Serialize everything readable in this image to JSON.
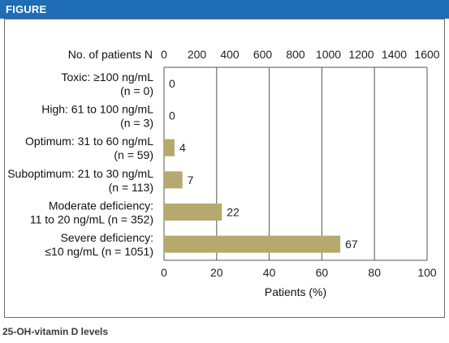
{
  "header": {
    "label": "FIGURE"
  },
  "caption": "25-OH-vitamin D levels",
  "colors": {
    "header_bg": "#1f6db4",
    "bar": "#b5a96d",
    "grid": "#555555"
  },
  "chart_data": {
    "type": "bar",
    "orientation": "horizontal",
    "categories": [
      [
        "Toxic: ≥100 ng/mL",
        "(n = 0)"
      ],
      [
        "High: 61 to 100 ng/mL",
        "(n = 3)"
      ],
      [
        "Optimum: 31 to 60 ng/mL",
        "(n = 59)"
      ],
      [
        "Suboptimum: 21 to 30 ng/mL",
        "(n = 113)"
      ],
      [
        "Moderate deficiency:",
        "11 to 20 ng/mL (n = 352)"
      ],
      [
        "Severe deficiency:",
        "≤10 ng/mL (n = 1051)"
      ]
    ],
    "values": [
      0,
      0,
      4,
      7,
      22,
      67
    ],
    "value_labels": [
      "0",
      "0",
      "4",
      "7",
      "22",
      "67"
    ],
    "xlabel": "Patients (%)",
    "xlim": [
      0,
      100
    ],
    "xticks": [
      "0",
      "20",
      "40",
      "60",
      "80",
      "100"
    ],
    "top_axis_label": "No. of patients N",
    "top_xlim": [
      0,
      1600
    ],
    "top_xticks": [
      "0",
      "200",
      "400",
      "600",
      "800",
      "1000",
      "1200",
      "1400",
      "1600"
    ],
    "grid": true
  }
}
